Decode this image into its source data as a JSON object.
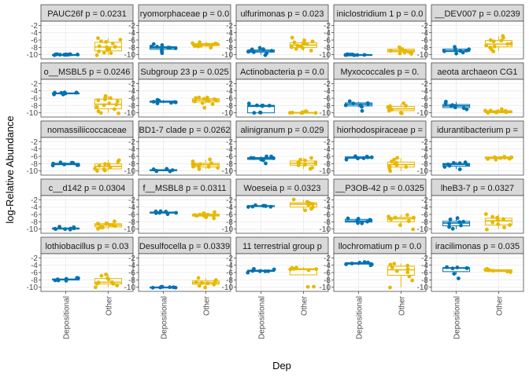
{
  "chart_data": {
    "type": "scatter",
    "subtype": "faceted box plot with jittered points",
    "xlabel": "Dep",
    "ylabel": "log-Relative Abundance",
    "categories": [
      "Depositional",
      "Other"
    ],
    "ylim": [
      -10.5,
      -1.5
    ],
    "yticks": [
      -2,
      -4,
      -6,
      -8,
      -10
    ],
    "grid": true,
    "colors": {
      "Depositional": "#0072B2",
      "Other": "#E7B800"
    },
    "facets": [
      {
        "label": "PAUC26f p = 0.0231",
        "series": [
          {
            "name": "Depositional",
            "values": [
              -10,
              -10,
              -10,
              -10,
              -10,
              -9.9,
              -10,
              -10,
              -10,
              -10,
              -10,
              -9.8
            ]
          },
          {
            "name": "Other",
            "values": [
              -5.5,
              -6,
              -6.5,
              -7,
              -7.5,
              -8,
              -8.5,
              -9,
              -9.5,
              -10,
              -6.2,
              -8.8,
              -9.6,
              -7.8
            ]
          }
        ]
      },
      {
        "label": "ryomorphaceae p = 0.0",
        "series": [
          {
            "name": "Depositional",
            "values": [
              -7.2,
              -7.5,
              -7.8,
              -8,
              -8.3,
              -8.6,
              -9,
              -9.6,
              -7.9,
              -8.2
            ]
          },
          {
            "name": "Other",
            "values": [
              -6.5,
              -6.8,
              -7,
              -7.2,
              -7.4,
              -7.6,
              -7.8,
              -8,
              -7.1,
              -6.9,
              -7.3,
              -7.5
            ]
          }
        ]
      },
      {
        "label": "ulfurimonas p = 0.023",
        "series": [
          {
            "name": "Depositional",
            "values": [
              -8,
              -8.5,
              -8.8,
              -9,
              -9.3,
              -9.6,
              -10,
              -9.2,
              -8.7
            ]
          },
          {
            "name": "Other",
            "values": [
              -5.5,
              -6,
              -6.5,
              -7,
              -7.5,
              -8,
              -8.5,
              -9,
              -6.8,
              -7.2,
              -7.8,
              -8.2
            ]
          }
        ]
      },
      {
        "label": "iniclostridium 1 p = 0.0",
        "series": [
          {
            "name": "Depositional",
            "values": [
              -10,
              -10,
              -10,
              -10,
              -10,
              -9.9,
              -10,
              -10,
              -10
            ]
          },
          {
            "name": "Other",
            "values": [
              -8,
              -8.3,
              -8.5,
              -8.8,
              -9,
              -9.2,
              -9.5,
              -9.8,
              -8.6,
              -9.1,
              -8.4,
              -9.3
            ]
          }
        ]
      },
      {
        "label": "__DEV007 p = 0.0239",
        "series": [
          {
            "name": "Depositional",
            "values": [
              -8,
              -8.5,
              -9,
              -9.3,
              -9.7,
              -8.8,
              -9.1,
              -8.3
            ]
          },
          {
            "name": "Other",
            "values": [
              -5,
              -5.5,
              -6,
              -6.5,
              -7,
              -7.5,
              -8,
              -8.5,
              -9,
              -6.2,
              -7.2,
              -7.8
            ]
          }
        ]
      },
      {
        "label": "o__MSBL5 p = 0.0246",
        "series": [
          {
            "name": "Depositional",
            "values": [
              -4.5,
              -4.6,
              -4.8,
              -5,
              -4.7,
              -4.9,
              -4.4,
              -4.6
            ]
          },
          {
            "name": "Other",
            "values": [
              -5.5,
              -6,
              -6.5,
              -7,
              -7.5,
              -8,
              -9,
              -10,
              -10,
              -6.2,
              -7.8,
              -8.5,
              -9.5,
              -5.8
            ]
          }
        ]
      },
      {
        "label": "Subgroup 23 p = 0.025",
        "series": [
          {
            "name": "Depositional",
            "values": [
              -6.5,
              -6.8,
              -7,
              -7.2,
              -7.4,
              -6.9,
              -7.1,
              -6.7
            ]
          },
          {
            "name": "Other",
            "values": [
              -5.8,
              -6,
              -6.2,
              -6.5,
              -6.8,
              -7,
              -7.2,
              -7.5,
              -8.5,
              -6.3,
              -6.6,
              -5.9
            ]
          }
        ]
      },
      {
        "label": "Actinobacteria p = 0.0",
        "series": [
          {
            "name": "Depositional",
            "values": [
              -7.5,
              -7.8,
              -8,
              -8.3,
              -10,
              -10,
              -10,
              -8.1
            ]
          },
          {
            "name": "Other",
            "values": [
              -9.5,
              -10,
              -10,
              -10,
              -9.8,
              -10,
              -10,
              -9.9
            ]
          }
        ]
      },
      {
        "label": "Myxococcales p = 0.",
        "series": [
          {
            "name": "Depositional",
            "values": [
              -7,
              -7.2,
              -7.5,
              -7.8,
              -8,
              -8.5,
              -9.5,
              -7.3
            ]
          },
          {
            "name": "Other",
            "values": [
              -7.5,
              -8,
              -8.5,
              -9,
              -9.5,
              -10,
              -10,
              -8.2,
              -8.8,
              -9.2
            ]
          }
        ]
      },
      {
        "label": "aeota archaeon CG1",
        "series": [
          {
            "name": "Depositional",
            "values": [
              -7,
              -7.5,
              -8,
              -8.5,
              -9,
              -7.8,
              -8.2,
              -8.8
            ]
          },
          {
            "name": "Other",
            "values": [
              -9,
              -9.5,
              -10,
              -10,
              -9.8,
              -9.3,
              -10,
              -9.6,
              -9.9,
              -9.4
            ]
          }
        ]
      },
      {
        "label": "nomassiliicoccaceae",
        "series": [
          {
            "name": "Depositional",
            "values": [
              -7.8,
              -8,
              -8.2,
              -8.4,
              -8.1,
              -7.9,
              -8.3,
              -8.5,
              -7.7
            ]
          },
          {
            "name": "Other",
            "values": [
              -7,
              -7.5,
              -8,
              -8.5,
              -9,
              -9.5,
              -10,
              -10,
              -8.3,
              -9.2
            ]
          }
        ]
      },
      {
        "label": "BD1-7 clade p = 0.0262",
        "series": [
          {
            "name": "Depositional",
            "values": [
              -9.5,
              -9.8,
              -10,
              -9.6,
              -9.9,
              -9.7,
              -10
            ]
          },
          {
            "name": "Other",
            "values": [
              -7,
              -7.5,
              -8,
              -8.3,
              -8.6,
              -9,
              -9.5,
              -8.2,
              -8.8,
              -7.8,
              -9.2
            ]
          }
        ]
      },
      {
        "label": "alinigranum p = 0.029",
        "series": [
          {
            "name": "Depositional",
            "values": [
              -6,
              -6.2,
              -6.5,
              -6.8,
              -7,
              -6.4,
              -6.6,
              -8
            ]
          },
          {
            "name": "Other",
            "values": [
              -6.5,
              -7,
              -7.5,
              -8,
              -8.5,
              -9,
              -9.5,
              -7.8,
              -8.2,
              -7.2
            ]
          }
        ]
      },
      {
        "label": "hiorhodospiraceae p =",
        "series": [
          {
            "name": "Depositional",
            "values": [
              -6,
              -6.2,
              -6.5,
              -6.8,
              -6.4,
              -6.6,
              -6.1
            ]
          },
          {
            "name": "Other",
            "values": [
              -6.5,
              -7,
              -7.5,
              -8,
              -8.5,
              -9,
              -9.5,
              -10,
              -7.8,
              -8.8
            ]
          }
        ]
      },
      {
        "label": "idurantibacterium p =",
        "series": [
          {
            "name": "Depositional",
            "values": [
              -7.5,
              -7.8,
              -8,
              -8.3,
              -8.6,
              -9,
              -9.5,
              -8.1
            ]
          },
          {
            "name": "Other",
            "values": [
              -6,
              -6.2,
              -6.4,
              -6.6,
              -6.8,
              -6.3,
              -6.5,
              -6.7,
              -6.1
            ]
          }
        ]
      },
      {
        "label": "c__d142 p = 0.0304",
        "series": [
          {
            "name": "Depositional",
            "values": [
              -9.5,
              -9.8,
              -10,
              -10,
              -9.6,
              -9.9,
              -9.7,
              -10,
              -10
            ]
          },
          {
            "name": "Other",
            "values": [
              -8,
              -8.5,
              -9,
              -9.5,
              -10,
              -8.3,
              -8.8,
              -9.2,
              -9.7,
              -8.6
            ]
          }
        ]
      },
      {
        "label": "f__MSBL8 p = 0.0311",
        "series": [
          {
            "name": "Depositional",
            "values": [
              -5.2,
              -5.4,
              -5.5,
              -5.6,
              -5.8,
              -5.3,
              -5.7
            ]
          },
          {
            "name": "Other",
            "values": [
              -5.5,
              -5.8,
              -6,
              -6.2,
              -6.5,
              -6.8,
              -7,
              -6.3,
              -6.1,
              -5.9
            ]
          }
        ]
      },
      {
        "label": "Woeseia p = 0.0323",
        "series": [
          {
            "name": "Depositional",
            "values": [
              -3.5,
              -3.6,
              -3.8,
              -4,
              -3.7,
              -3.9,
              -3.6
            ]
          },
          {
            "name": "Other",
            "values": [
              -2,
              -2.5,
              -3,
              -3.5,
              -4,
              -4.5,
              -5,
              -3.2,
              -2.8
            ]
          }
        ]
      },
      {
        "label": "__P3OB-42 p = 0.0325",
        "series": [
          {
            "name": "Depositional",
            "values": [
              -7,
              -7.5,
              -8,
              -8.5,
              -7.8,
              -7.2,
              -8.2
            ]
          },
          {
            "name": "Other",
            "values": [
              -6,
              -6.5,
              -7,
              -7.5,
              -8,
              -9,
              -10,
              -7.2,
              -6.8
            ]
          }
        ]
      },
      {
        "label": "lheB3-7 p = 0.0327",
        "series": [
          {
            "name": "Depositional",
            "values": [
              -7,
              -7.5,
              -8,
              -8.5,
              -9,
              -9.5,
              -10,
              -8.2
            ]
          },
          {
            "name": "Other",
            "values": [
              -6,
              -6.5,
              -7,
              -7.5,
              -8,
              -8.5,
              -9,
              -9.5,
              -10,
              -7.2
            ]
          }
        ]
      },
      {
        "label": "lothiobacillus p = 0.03",
        "series": [
          {
            "name": "Depositional",
            "values": [
              -7.5,
              -7.8,
              -8,
              -8.2,
              -7.9,
              -8.1,
              -7.7
            ]
          },
          {
            "name": "Other",
            "values": [
              -6.5,
              -7,
              -7.5,
              -8,
              -8.5,
              -9,
              -9.5,
              -10,
              -8.8,
              -9.2
            ]
          }
        ]
      },
      {
        "label": "Desulfocella p = 0.0339",
        "series": [
          {
            "name": "Depositional",
            "values": [
              -10,
              -10,
              -10,
              -10,
              -9.9,
              -10,
              -10
            ]
          },
          {
            "name": "Other",
            "values": [
              -7.5,
              -8,
              -8.5,
              -9,
              -9.5,
              -10,
              -8.8,
              -8.3,
              -9.2
            ]
          }
        ]
      },
      {
        "label": "11 terrestrial group p",
        "series": [
          {
            "name": "Depositional",
            "values": [
              -5,
              -5.3,
              -5.5,
              -5.8,
              -6,
              -5.6,
              -5.4
            ]
          },
          {
            "name": "Other",
            "values": [
              -4.5,
              -4.8,
              -5,
              -5.2,
              -5.5,
              -10,
              -10,
              -5.1
            ]
          }
        ]
      },
      {
        "label": "llochromatium p = 0.0",
        "series": [
          {
            "name": "Depositional",
            "values": [
              -3,
              -3.2,
              -3.5,
              -3.8,
              -4,
              -3.4,
              -3.6
            ]
          },
          {
            "name": "Other",
            "values": [
              -3.5,
              -4,
              -4.5,
              -5,
              -5.5,
              -6,
              -7,
              -8,
              -10,
              -4.2
            ]
          }
        ]
      },
      {
        "label": "iracilimonas p = 0.035",
        "series": [
          {
            "name": "Depositional",
            "values": [
              -4.5,
              -4.6,
              -4.8,
              -5,
              -6.5,
              -7.5,
              -4.7
            ]
          },
          {
            "name": "Other",
            "values": [
              -5,
              -5.3,
              -5.5,
              -5.8,
              -6,
              -5.6,
              -5.2
            ]
          }
        ]
      }
    ]
  }
}
